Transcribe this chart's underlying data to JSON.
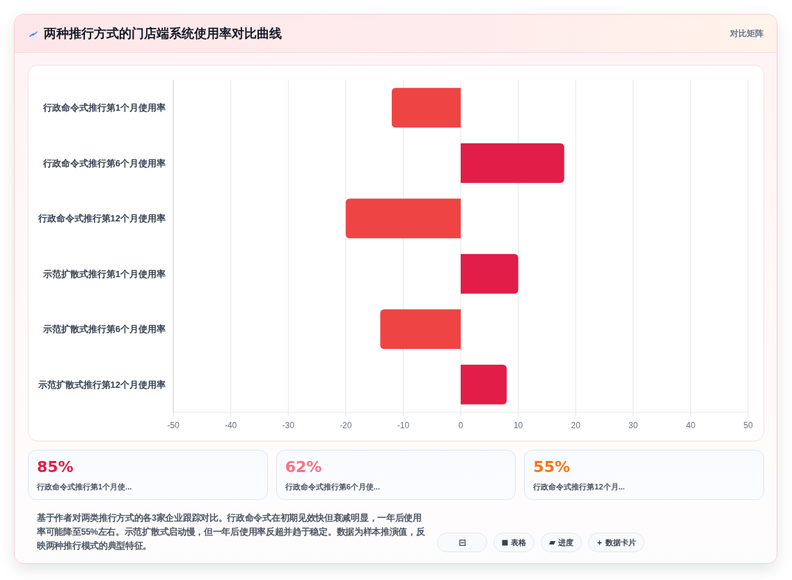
{
  "chart_data": [
    {
      "type": "bar",
      "title": "两种推行方式的门店端系统使用率对比曲线",
      "orientation": "horizontal",
      "categories": [
        "行政命令式推行第1个月使用率",
        "行政命令式推行第6个月使用率",
        "行政命令式推行第12个月使用率",
        "示范扩散式推行第1个月使用率",
        "示范扩散式推行第6个月使用率",
        "示范扩散式推行第12个月使用率"
      ],
      "values": [
        -12,
        18,
        -20,
        10,
        -14,
        8
      ],
      "colors": [
        "#ef4444",
        "#e11d48",
        "#ef4444",
        "#e11d48",
        "#ef4444",
        "#e11d48"
      ],
      "xlim": [
        -50,
        50
      ],
      "xticks": [
        -50,
        -40,
        -30,
        -20,
        -10,
        0,
        10,
        20,
        30,
        40,
        50
      ],
      "grid": "x",
      "annotations": [
        "对比矩阵",
        "基于作者对两类推行方式的各3家企业跟踪对比。行政命令式在初期见效快但衰减明显，一年后使用率可能降至55%左右。示范扩散式启动慢，但一年后使用率反超并趋于稳定。数据为样本推演值，反映两种推行模式的典型特征。",
        "表格",
        "进度",
        "数据卡片"
      ]
    },
    {
      "type": "other",
      "annotations": [
        "85%",
        "行政命令式推行第1个月使...",
        "62%",
        "行政命令式推行第6个月使...",
        "55%",
        "行政命令式推行第12个月..."
      ]
    }
  ]
}
